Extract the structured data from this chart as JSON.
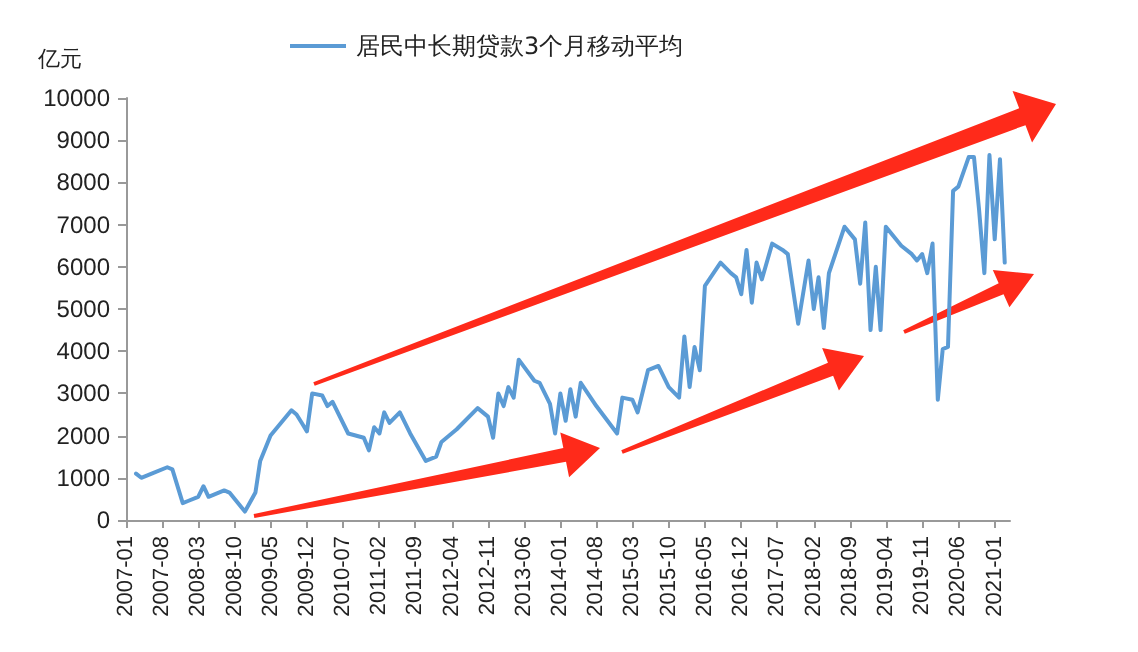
{
  "chart_data": {
    "type": "line",
    "ylabel": "亿元",
    "legend": "top",
    "grid": false,
    "marker": "none",
    "line_style": "solid",
    "xlim": [
      "2007-01",
      "2021-04"
    ],
    "ylim": [
      0,
      10000
    ],
    "yticks": [
      0,
      1000,
      2000,
      3000,
      4000,
      5000,
      6000,
      7000,
      8000,
      9000,
      10000
    ],
    "xticks": [
      "2007-01",
      "2007-08",
      "2008-03",
      "2008-10",
      "2009-05",
      "2009-12",
      "2010-07",
      "2011-02",
      "2011-09",
      "2012-04",
      "2012-11",
      "2013-06",
      "2014-01",
      "2014-08",
      "2015-03",
      "2015-10",
      "2016-05",
      "2016-12",
      "2017-07",
      "2018-02",
      "2018-09",
      "2019-04",
      "2019-11",
      "2020-06",
      "2021-01"
    ],
    "series": [
      {
        "name": "居民中长期贷款3个月移动平均",
        "color": "#5b9bd5",
        "x": [
          "2007-03",
          "2007-04",
          "2007-06",
          "2007-09",
          "2007-10",
          "2007-12",
          "2008-01",
          "2008-03",
          "2008-04",
          "2008-05",
          "2008-08",
          "2008-09",
          "2008-12",
          "2009-02",
          "2009-03",
          "2009-05",
          "2009-09",
          "2009-10",
          "2009-11",
          "2009-12",
          "2010-01",
          "2010-03",
          "2010-04",
          "2010-05",
          "2010-08",
          "2010-11",
          "2010-12",
          "2011-01",
          "2011-02",
          "2011-03",
          "2011-04",
          "2011-06",
          "2011-08",
          "2011-11",
          "2012-01",
          "2012-02",
          "2012-05",
          "2012-09",
          "2012-11",
          "2012-12",
          "2013-01",
          "2013-02",
          "2013-03",
          "2013-04",
          "2013-05",
          "2013-08",
          "2013-09",
          "2013-11",
          "2013-12",
          "2014-01",
          "2014-02",
          "2014-03",
          "2014-04",
          "2014-05",
          "2014-08",
          "2014-12",
          "2015-01",
          "2015-03",
          "2015-04",
          "2015-06",
          "2015-08",
          "2015-10",
          "2015-12",
          "2016-01",
          "2016-02",
          "2016-03",
          "2016-04",
          "2016-05",
          "2016-08",
          "2016-10",
          "2016-11",
          "2016-12",
          "2017-01",
          "2017-02",
          "2017-03",
          "2017-04",
          "2017-06",
          "2017-08",
          "2017-09",
          "2017-11",
          "2018-01",
          "2018-02",
          "2018-03",
          "2018-04",
          "2018-05",
          "2018-08",
          "2018-10",
          "2018-11",
          "2018-12",
          "2019-01",
          "2019-02",
          "2019-03",
          "2019-04",
          "2019-07",
          "2019-09",
          "2019-10",
          "2019-11",
          "2019-12",
          "2020-01",
          "2020-02",
          "2020-03",
          "2020-04",
          "2020-05",
          "2020-06",
          "2020-08",
          "2020-09",
          "2020-10",
          "2020-11",
          "2020-12",
          "2021-01",
          "2021-02",
          "2021-03"
        ],
        "values": [
          1100,
          1000,
          1100,
          1250,
          1200,
          400,
          450,
          550,
          800,
          550,
          700,
          650,
          200,
          650,
          1400,
          2000,
          2600,
          2500,
          2300,
          2100,
          3000,
          2950,
          2700,
          2800,
          2050,
          1950,
          1650,
          2200,
          2050,
          2550,
          2300,
          2550,
          2050,
          1400,
          1500,
          1850,
          2150,
          2650,
          2450,
          1950,
          3000,
          2700,
          3150,
          2900,
          3800,
          3300,
          3250,
          2750,
          2050,
          3000,
          2350,
          3100,
          2450,
          3250,
          2700,
          2050,
          2900,
          2850,
          2550,
          3550,
          3650,
          3150,
          2900,
          4350,
          3150,
          4100,
          3550,
          5550,
          6100,
          5850,
          5750,
          5350,
          6400,
          5150,
          6100,
          5700,
          6550,
          6400,
          6300,
          4650,
          6150,
          5000,
          5750,
          4550,
          5850,
          6950,
          6650,
          5600,
          7050,
          4500,
          6000,
          4500,
          6950,
          6500,
          6300,
          6150,
          6300,
          5850,
          6550,
          2850,
          4050,
          4100,
          7800,
          7900,
          8600,
          8600,
          7350,
          5850,
          8650,
          6650,
          8550,
          6100
        ]
      }
    ]
  }
}
